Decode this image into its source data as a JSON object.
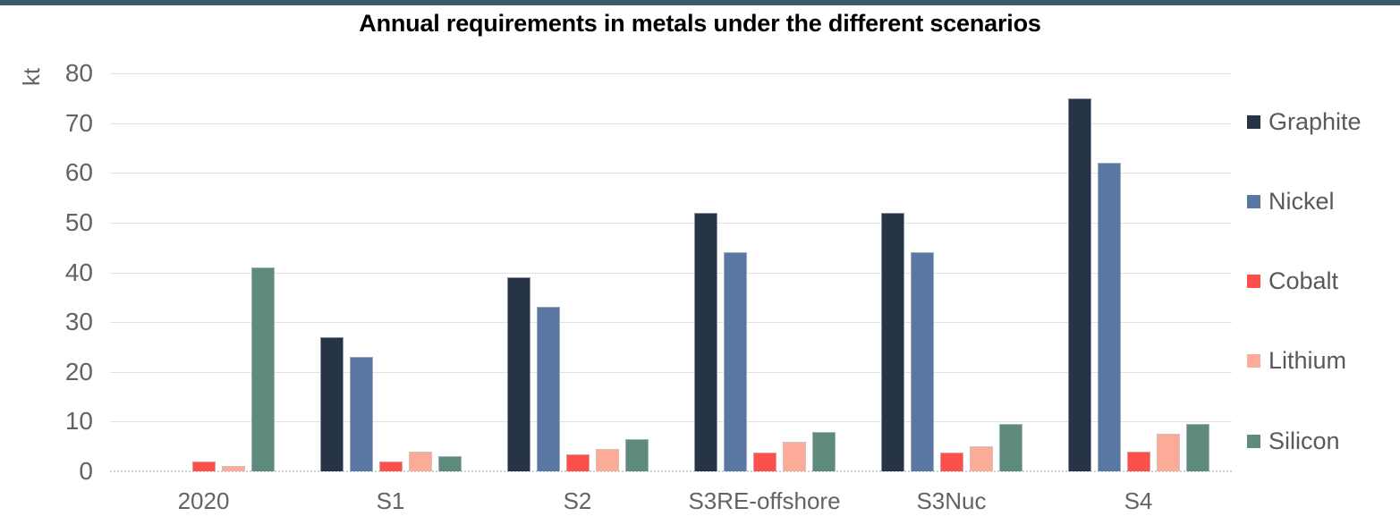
{
  "window": {
    "top_strip_color": "#3d5d66"
  },
  "chart_data": {
    "type": "bar",
    "title": "Annual requirements in metals under the different scenarios",
    "ylabel": "kt",
    "xlabel": "",
    "categories": [
      "2020",
      "S1",
      "S2",
      "S3RE-offshore",
      "S3Nuc",
      "S4"
    ],
    "series": [
      {
        "name": "Graphite",
        "color": "#273447",
        "values": [
          0,
          27,
          39,
          52,
          52,
          75
        ]
      },
      {
        "name": "Nickel",
        "color": "#5a77a3",
        "values": [
          0,
          23,
          33,
          44,
          44,
          62
        ]
      },
      {
        "name": "Cobalt",
        "color": "#fd504a",
        "values": [
          2,
          2,
          3.5,
          3.7,
          3.7,
          4
        ]
      },
      {
        "name": "Lithium",
        "color": "#fdab99",
        "values": [
          1,
          4,
          4.5,
          6,
          5,
          7.5
        ]
      },
      {
        "name": "Silicon",
        "color": "#5e8b7e",
        "values": [
          41,
          3,
          6.5,
          8,
          9.5,
          9.5
        ]
      }
    ],
    "ylim": [
      0,
      80
    ],
    "yticks": [
      0,
      10,
      20,
      30,
      40,
      50,
      60,
      70,
      80
    ],
    "grid": "horizontal",
    "legend_position": "right"
  },
  "style": {
    "grid_color": "#e2e2e2",
    "axis_line_color": "#ccd1d5",
    "tick_text_color": "#616467",
    "legend_text_color": "#58595c",
    "title_color": "#000000"
  }
}
